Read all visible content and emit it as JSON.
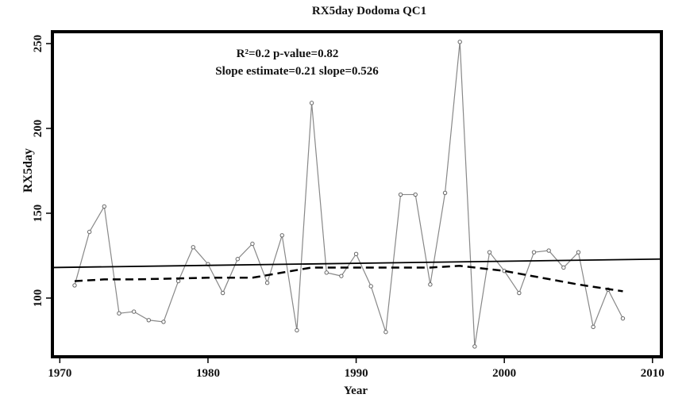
{
  "chart_data": {
    "type": "line",
    "title": "RX5day Dodoma QC1",
    "x_label": "Year",
    "y_label": "RX5day",
    "annotations": [
      "R²=0.2 p-value=0.82",
      "Slope estimate=0.21 slope=0.526"
    ],
    "xlim": [
      1969.5,
      2010.6
    ],
    "ylim": [
      65.4,
      257
    ],
    "xticks": [
      1970,
      1980,
      1990,
      2000,
      2010
    ],
    "yticks": [
      100,
      150,
      200,
      250
    ],
    "series": [
      {
        "name": "RX5day",
        "color": "#888888",
        "markers": true,
        "dash": false,
        "x": [
          1971,
          1972,
          1973,
          1974,
          1975,
          1976,
          1977,
          1978,
          1979,
          1980,
          1981,
          1982,
          1983,
          1984,
          1985,
          1986,
          1987,
          1988,
          1989,
          1990,
          1991,
          1992,
          1993,
          1994,
          1995,
          1996,
          1997,
          1998,
          1999,
          2000,
          2001,
          2002,
          2003,
          2004,
          2005,
          2006,
          2007,
          2008
        ],
        "values": [
          107.5,
          139,
          154,
          91,
          92,
          87,
          86,
          110,
          130,
          120,
          103,
          123,
          132,
          109,
          137,
          81,
          215,
          115,
          113,
          126,
          107,
          80,
          161,
          161,
          108,
          162,
          251,
          71.5,
          127,
          116,
          103,
          127,
          128,
          118,
          127,
          83,
          105,
          88
        ]
      },
      {
        "name": "Linear trend",
        "color": "#000000",
        "markers": false,
        "dash": false,
        "x": [
          1969.5,
          2010.6
        ],
        "values": [
          118,
          123
        ]
      },
      {
        "name": "Smoothed",
        "color": "#000000",
        "markers": false,
        "dash": true,
        "x": [
          1971,
          1973,
          1975,
          1980,
          1983,
          1987,
          1990,
          1995,
          1997,
          2000,
          2005,
          2008
        ],
        "values": [
          110,
          111,
          111,
          112,
          112,
          118,
          118,
          118,
          119,
          116,
          108,
          104
        ]
      }
    ]
  }
}
